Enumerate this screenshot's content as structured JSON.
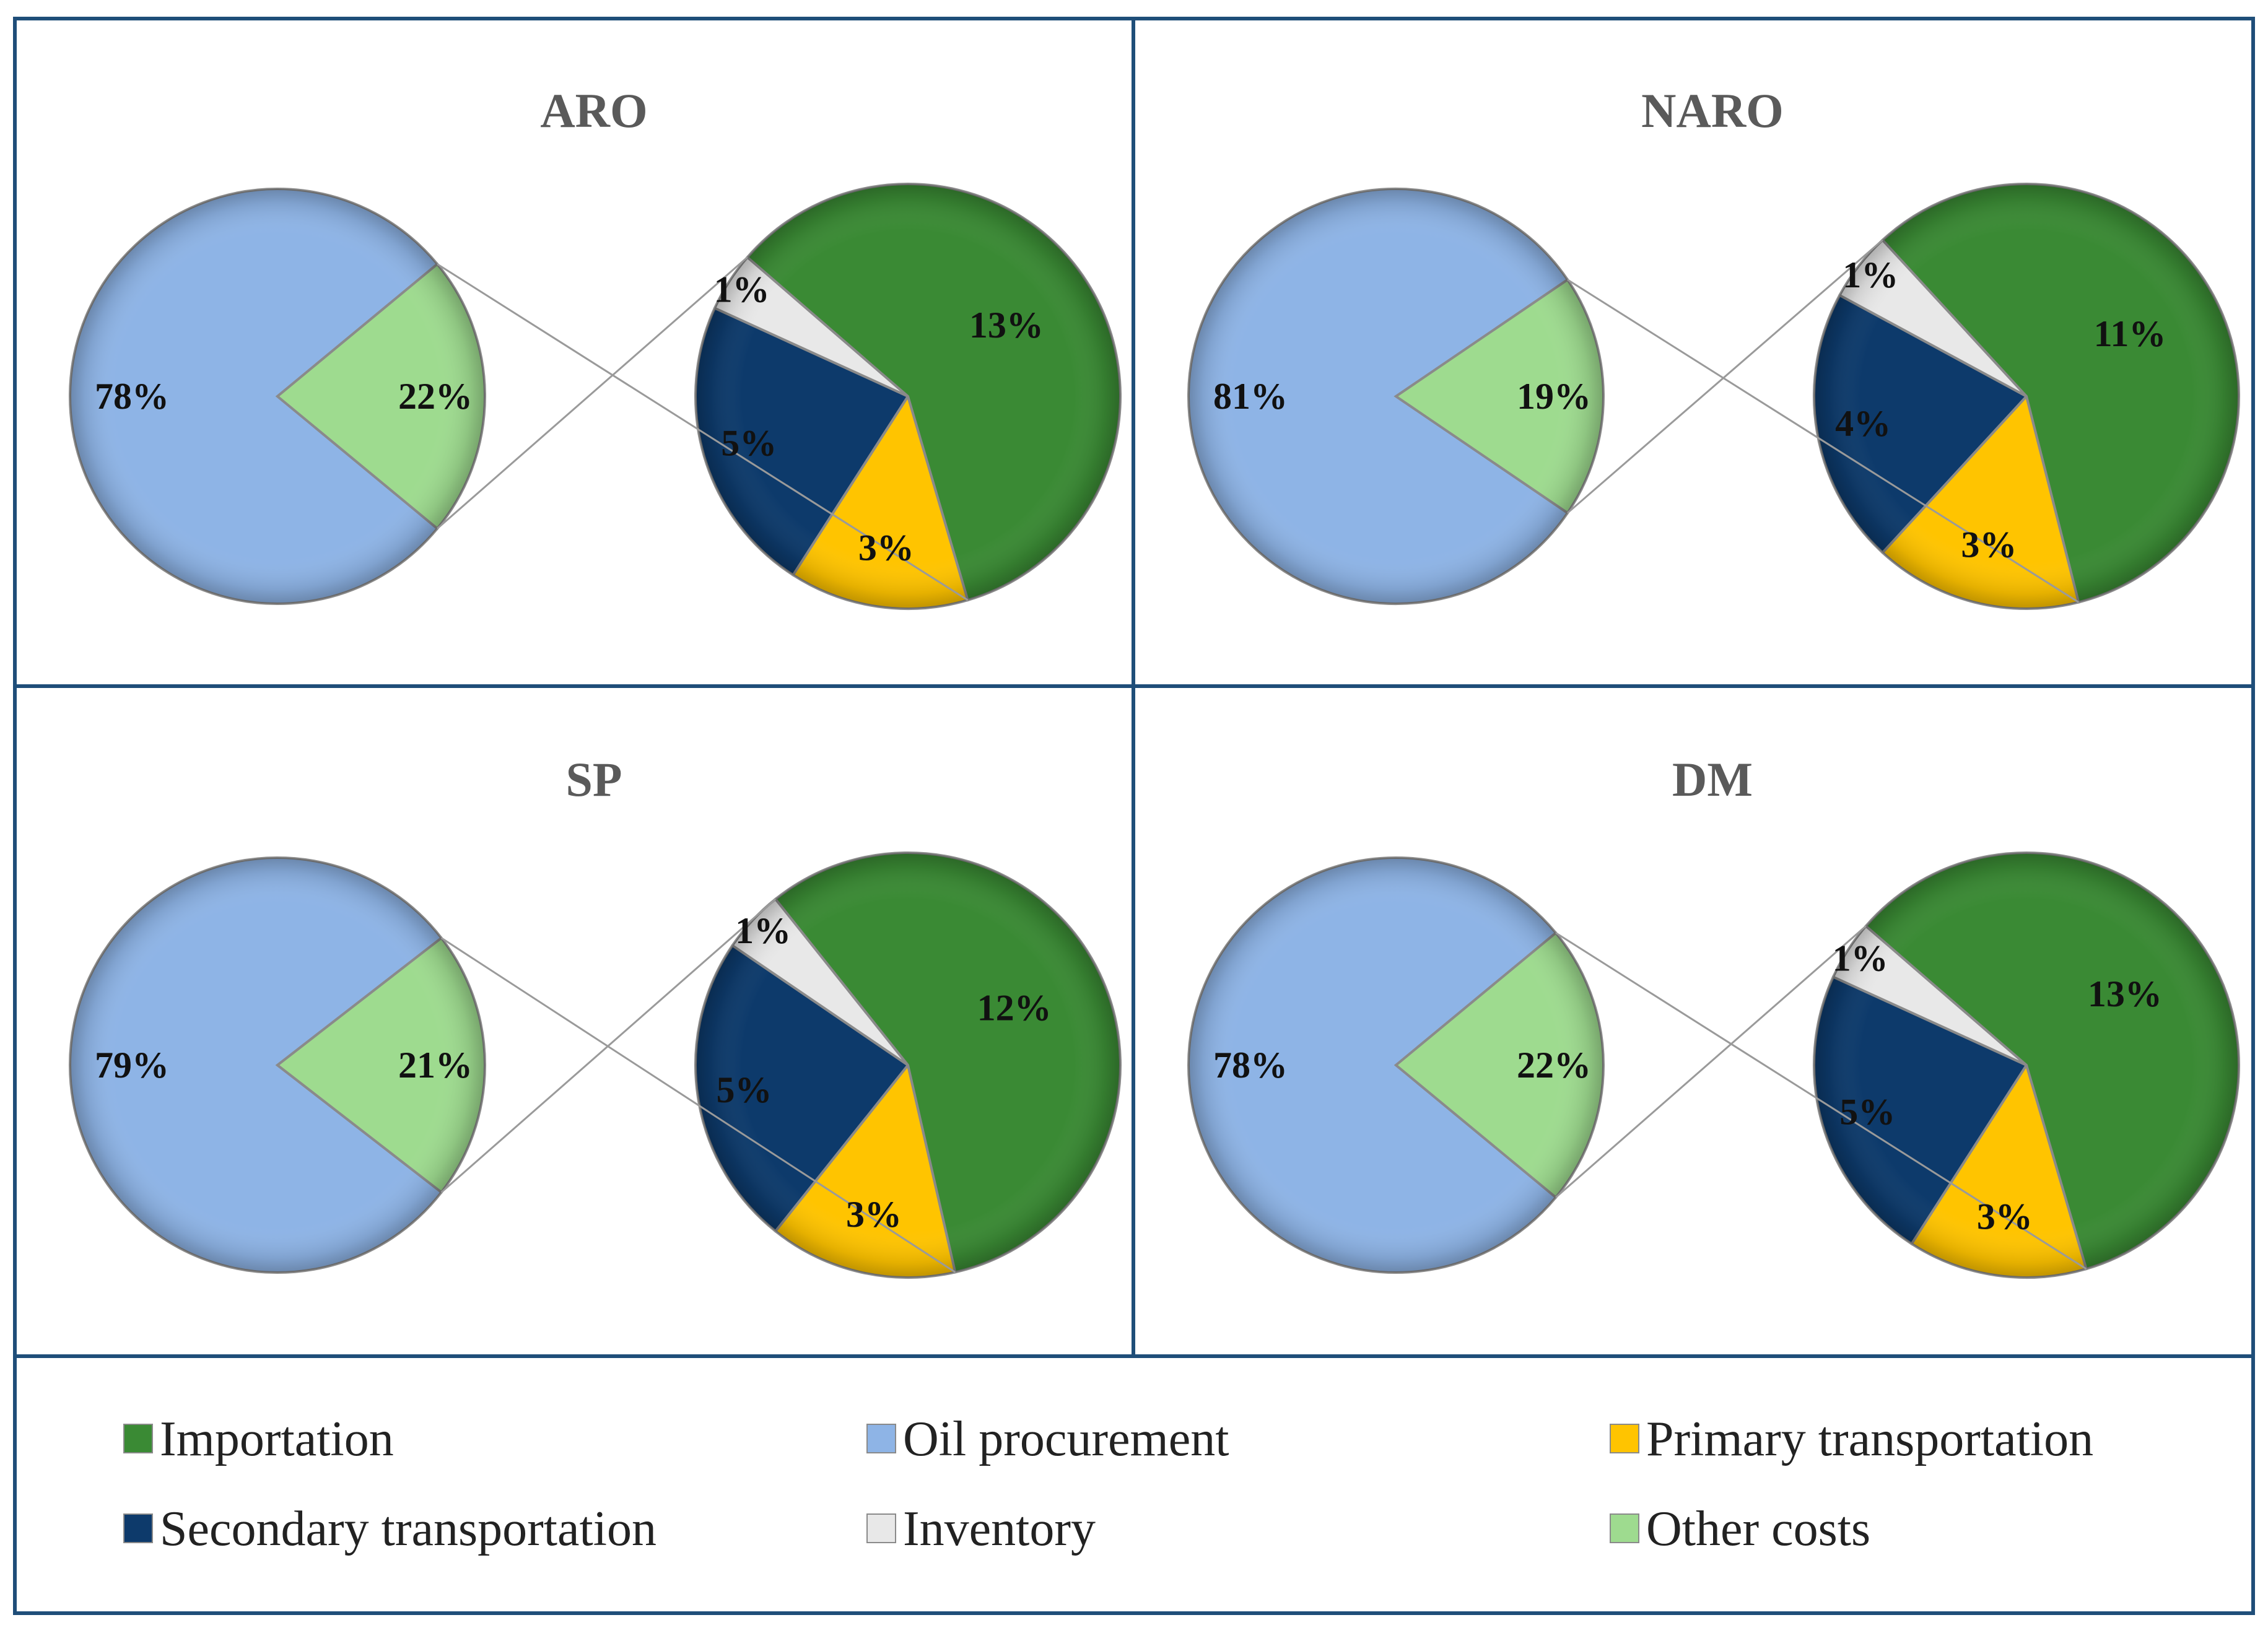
{
  "chart_data": [
    {
      "type": "pie",
      "subtype": "pie-of-pie",
      "title": "ARO",
      "main_slices": [
        {
          "name": "Oil procurement",
          "value": 78,
          "label": "78%"
        },
        {
          "name": "Other costs",
          "value": 22,
          "label": "22%"
        }
      ],
      "detail_slices": [
        {
          "name": "Importation",
          "value": 13,
          "label": "13%"
        },
        {
          "name": "Primary transportation",
          "value": 3,
          "label": "3%"
        },
        {
          "name": "Secondary transportation",
          "value": 5,
          "label": "5%"
        },
        {
          "name": "Inventory",
          "value": 1,
          "label": "1%"
        }
      ]
    },
    {
      "type": "pie",
      "subtype": "pie-of-pie",
      "title": "NARO",
      "main_slices": [
        {
          "name": "Oil procurement",
          "value": 81,
          "label": "81%"
        },
        {
          "name": "Other costs",
          "value": 19,
          "label": "19%"
        }
      ],
      "detail_slices": [
        {
          "name": "Importation",
          "value": 11,
          "label": "11%"
        },
        {
          "name": "Primary transportation",
          "value": 3,
          "label": "3%"
        },
        {
          "name": "Secondary transportation",
          "value": 4,
          "label": "4%"
        },
        {
          "name": "Inventory",
          "value": 1,
          "label": "1%"
        }
      ]
    },
    {
      "type": "pie",
      "subtype": "pie-of-pie",
      "title": "SP",
      "main_slices": [
        {
          "name": "Oil procurement",
          "value": 79,
          "label": "79%"
        },
        {
          "name": "Other costs",
          "value": 21,
          "label": "21%"
        }
      ],
      "detail_slices": [
        {
          "name": "Importation",
          "value": 12,
          "label": "12%"
        },
        {
          "name": "Primary transportation",
          "value": 3,
          "label": "3%"
        },
        {
          "name": "Secondary transportation",
          "value": 5,
          "label": "5%"
        },
        {
          "name": "Inventory",
          "value": 1,
          "label": "1%"
        }
      ]
    },
    {
      "type": "pie",
      "subtype": "pie-of-pie",
      "title": "DM",
      "main_slices": [
        {
          "name": "Oil procurement",
          "value": 78,
          "label": "78%"
        },
        {
          "name": "Other costs",
          "value": 22,
          "label": "22%"
        }
      ],
      "detail_slices": [
        {
          "name": "Importation",
          "value": 13,
          "label": "13%"
        },
        {
          "name": "Primary transportation",
          "value": 3,
          "label": "3%"
        },
        {
          "name": "Secondary transportation",
          "value": 5,
          "label": "5%"
        },
        {
          "name": "Inventory",
          "value": 1,
          "label": "1%"
        }
      ]
    }
  ],
  "legend": [
    {
      "name": "Importation",
      "color": "#3a8a34"
    },
    {
      "name": "Oil procurement",
      "color": "#8eb4e6"
    },
    {
      "name": "Primary transportation",
      "color": "#ffc400"
    },
    {
      "name": "Secondary transportation",
      "color": "#0d3a6b"
    },
    {
      "name": "Inventory",
      "color": "#e8e8e8"
    },
    {
      "name": "Other costs",
      "color": "#9edb8f"
    }
  ],
  "colors": {
    "Oil procurement": "#8eb4e6",
    "Other costs": "#9edb8f",
    "Importation": "#3a8a34",
    "Primary transportation": "#ffc400",
    "Secondary transportation": "#0d3a6b",
    "Inventory": "#e8e8e8",
    "frame": "#1f4e79"
  }
}
